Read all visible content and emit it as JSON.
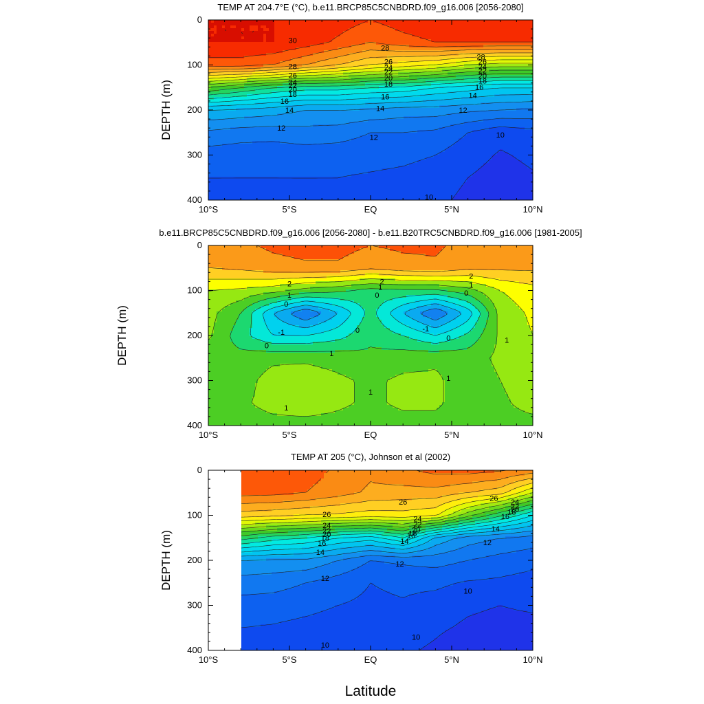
{
  "figure": {
    "xlabel": "Latitude"
  },
  "chart_data": [
    {
      "type": "heatmap",
      "panel": "top",
      "title": "TEMP AT 204.7°E (°C), b.e11.BRCP85C5CNBDRD.f09_g16.006 [2056-2080]",
      "ylabel": "DEPTH (m)",
      "xlim": [
        -10,
        10
      ],
      "ylim": [
        400,
        0
      ],
      "x_ticks": [
        "10°S",
        "5°S",
        "EQ",
        "5°N",
        "10°N"
      ],
      "y_ticks": [
        "0",
        "100",
        "200",
        "300",
        "400"
      ],
      "contour_interval": 1,
      "x": [
        -10,
        -8,
        -6,
        -4,
        -2,
        0,
        2,
        4,
        6,
        8,
        10
      ],
      "y": [
        0,
        50,
        100,
        150,
        200,
        250,
        300,
        350,
        400
      ],
      "z": [
        [
          30.0,
          30.0,
          30.0,
          30.0,
          29.5,
          29.0,
          29.5,
          29.8,
          30.0,
          30.0,
          30.0
        ],
        [
          30.0,
          30.0,
          30.0,
          29.5,
          28.8,
          28.0,
          28.6,
          29.0,
          29.0,
          29.0,
          29.0
        ],
        [
          28.5,
          28.5,
          28.0,
          27.0,
          26.0,
          25.0,
          24.5,
          24.0,
          23.0,
          22.5,
          22.5
        ],
        [
          21.0,
          20.0,
          19.0,
          18.5,
          18.5,
          18.0,
          17.8,
          17.0,
          16.5,
          16.0,
          16.0
        ],
        [
          15.0,
          14.8,
          14.5,
          14.0,
          14.0,
          13.8,
          13.5,
          13.5,
          13.2,
          13.0,
          12.8
        ],
        [
          12.8,
          12.5,
          12.4,
          12.6,
          12.5,
          12.0,
          12.0,
          11.8,
          11.0,
          10.3,
          10.7
        ],
        [
          11.5,
          11.4,
          11.4,
          11.5,
          11.4,
          11.3,
          11.2,
          11.0,
          10.4,
          9.9,
          10.2
        ],
        [
          11.0,
          11.0,
          11.0,
          11.0,
          11.0,
          10.9,
          10.8,
          10.6,
          10.0,
          9.6,
          9.9
        ],
        [
          10.8,
          10.8,
          10.8,
          10.8,
          10.8,
          10.7,
          10.6,
          10.3,
          9.7,
          9.4,
          9.6
        ]
      ],
      "labels": [
        {
          "text": "30",
          "x": -4.8,
          "y": 45
        },
        {
          "text": "28",
          "x": -4.8,
          "y": 103
        },
        {
          "text": "26",
          "x": -4.8,
          "y": 123
        },
        {
          "text": "24",
          "x": -4.8,
          "y": 138
        },
        {
          "text": "22",
          "x": -4.8,
          "y": 145
        },
        {
          "text": "20",
          "x": -4.8,
          "y": 154
        },
        {
          "text": "18",
          "x": -4.8,
          "y": 165
        },
        {
          "text": "16",
          "x": -5.3,
          "y": 180
        },
        {
          "text": "14",
          "x": -5.0,
          "y": 200
        },
        {
          "text": "12",
          "x": -5.5,
          "y": 240
        },
        {
          "text": "28",
          "x": 0.9,
          "y": 62
        },
        {
          "text": "26",
          "x": 1.1,
          "y": 92
        },
        {
          "text": "24",
          "x": 1.1,
          "y": 105
        },
        {
          "text": "22",
          "x": 1.1,
          "y": 115
        },
        {
          "text": "20",
          "x": 1.1,
          "y": 128
        },
        {
          "text": "18",
          "x": 1.1,
          "y": 142
        },
        {
          "text": "16",
          "x": 0.9,
          "y": 170
        },
        {
          "text": "14",
          "x": 0.6,
          "y": 196
        },
        {
          "text": "12",
          "x": 0.2,
          "y": 260
        },
        {
          "text": "28",
          "x": 6.8,
          "y": 82
        },
        {
          "text": "26",
          "x": 6.9,
          "y": 92
        },
        {
          "text": "24",
          "x": 6.9,
          "y": 104
        },
        {
          "text": "22",
          "x": 6.9,
          "y": 112
        },
        {
          "text": "20",
          "x": 6.9,
          "y": 124
        },
        {
          "text": "18",
          "x": 6.9,
          "y": 135
        },
        {
          "text": "16",
          "x": 6.7,
          "y": 149
        },
        {
          "text": "14",
          "x": 6.3,
          "y": 167
        },
        {
          "text": "12",
          "x": 5.7,
          "y": 200
        },
        {
          "text": "10",
          "x": 8.0,
          "y": 255
        },
        {
          "text": "10",
          "x": 3.6,
          "y": 393
        }
      ]
    },
    {
      "type": "heatmap",
      "panel": "middle",
      "title": "b.e11.BRCP85C5CNBDRD.f09_g16.006 [2056-2080] - b.e11.B20TRC5CNBDRD.f09_g16.006 [1981-2005]",
      "ylabel": "DEPTH (m)",
      "xlim": [
        -10,
        10
      ],
      "ylim": [
        400,
        0
      ],
      "x_ticks": [
        "10°S",
        "5°S",
        "EQ",
        "5°N",
        "10°N"
      ],
      "y_ticks": [
        "0",
        "100",
        "200",
        "300",
        "400"
      ],
      "contour_interval": 0.5,
      "x": [
        -10,
        -8,
        -6,
        -4,
        -2,
        0,
        2,
        4,
        6,
        8,
        10
      ],
      "y": [
        0,
        50,
        100,
        150,
        200,
        250,
        300,
        350,
        400
      ],
      "z": [
        [
          2.8,
          2.9,
          3.1,
          3.2,
          3.2,
          3.0,
          3.1,
          3.1,
          2.8,
          2.7,
          2.7
        ],
        [
          2.5,
          2.6,
          2.8,
          2.9,
          2.9,
          2.6,
          2.8,
          2.9,
          2.6,
          2.6,
          2.6
        ],
        [
          1.5,
          1.4,
          1.2,
          0.8,
          0.6,
          0.3,
          0.4,
          0.4,
          0.8,
          1.5,
          1.8
        ],
        [
          1.2,
          0.5,
          -1.0,
          -2.0,
          -1.0,
          0.2,
          -1.0,
          -2.0,
          -0.8,
          1.2,
          1.6
        ],
        [
          1.1,
          0.2,
          -0.5,
          -0.5,
          -0.2,
          0.4,
          0.0,
          -0.5,
          0.1,
          1.1,
          1.5
        ],
        [
          0.6,
          0.7,
          0.9,
          0.9,
          0.8,
          0.6,
          0.8,
          0.9,
          0.8,
          1.1,
          1.3
        ],
        [
          0.6,
          0.8,
          1.2,
          1.3,
          1.1,
          0.9,
          1.1,
          1.1,
          0.7,
          1.0,
          1.3
        ],
        [
          0.7,
          0.9,
          1.2,
          1.3,
          1.1,
          0.9,
          1.1,
          1.1,
          0.7,
          0.9,
          1.2
        ],
        [
          0.7,
          0.7,
          0.8,
          0.8,
          0.8,
          0.7,
          0.8,
          0.8,
          0.7,
          0.8,
          0.8
        ]
      ],
      "labels": [
        {
          "text": "2",
          "x": -5.0,
          "y": 85
        },
        {
          "text": "1",
          "x": -5.0,
          "y": 110
        },
        {
          "text": "0",
          "x": -5.2,
          "y": 130
        },
        {
          "text": "-1",
          "x": -5.5,
          "y": 192
        },
        {
          "text": "0",
          "x": -6.4,
          "y": 222
        },
        {
          "text": "0",
          "x": -0.8,
          "y": 188
        },
        {
          "text": "1",
          "x": -2.4,
          "y": 240
        },
        {
          "text": "1",
          "x": -5.2,
          "y": 360
        },
        {
          "text": "1",
          "x": 0.0,
          "y": 325
        },
        {
          "text": "2",
          "x": 0.7,
          "y": 80
        },
        {
          "text": "1",
          "x": 0.6,
          "y": 92
        },
        {
          "text": "0",
          "x": 0.4,
          "y": 110
        },
        {
          "text": "-1",
          "x": 3.4,
          "y": 185
        },
        {
          "text": "0",
          "x": 4.8,
          "y": 205
        },
        {
          "text": "0",
          "x": 5.9,
          "y": 105
        },
        {
          "text": "1",
          "x": 6.2,
          "y": 88
        },
        {
          "text": "2",
          "x": 6.2,
          "y": 68
        },
        {
          "text": "1",
          "x": 8.4,
          "y": 210
        },
        {
          "text": "1",
          "x": 4.8,
          "y": 295
        }
      ]
    },
    {
      "type": "heatmap",
      "panel": "bottom",
      "title": "TEMP AT 205 (°C), Johnson et al (2002)",
      "ylabel": "DEPTH (m)",
      "xlim": [
        -10,
        10
      ],
      "ylim": [
        400,
        0
      ],
      "x_ticks": [
        "10°S",
        "5°S",
        "EQ",
        "5°N",
        "10°N"
      ],
      "y_ticks": [
        "0",
        "100",
        "200",
        "300",
        "400"
      ],
      "contour_interval": 1,
      "data_xlim": [
        -8,
        10
      ],
      "x": [
        -8,
        -6,
        -4,
        -2,
        0,
        2,
        4,
        6,
        8,
        10
      ],
      "y": [
        0,
        50,
        100,
        150,
        200,
        250,
        300,
        350,
        400
      ],
      "z": [
        [
          29.0,
          28.8,
          28.5,
          27.8,
          27.2,
          27.8,
          28.3,
          28.4,
          28.1,
          27.6
        ],
        [
          28.4,
          28.3,
          28.0,
          27.4,
          26.8,
          26.6,
          26.6,
          26.0,
          25.4,
          23.0
        ],
        [
          25.5,
          25.3,
          25.0,
          24.8,
          24.5,
          24.6,
          24.2,
          21.4,
          19.2,
          17.0
        ],
        [
          19.5,
          18.5,
          18.0,
          17.0,
          16.5,
          18.0,
          14.8,
          13.5,
          13.0,
          12.6
        ],
        [
          14.0,
          13.8,
          13.8,
          13.0,
          12.0,
          12.2,
          12.4,
          12.0,
          11.6,
          11.3
        ],
        [
          12.5,
          12.4,
          12.0,
          11.5,
          11.0,
          11.2,
          11.2,
          10.9,
          10.8,
          10.6
        ],
        [
          11.6,
          11.5,
          11.3,
          11.0,
          10.8,
          10.9,
          10.6,
          10.2,
          10.0,
          10.2
        ],
        [
          11.0,
          10.9,
          10.7,
          10.5,
          10.5,
          10.6,
          10.2,
          9.8,
          9.6,
          9.6
        ],
        [
          10.3,
          10.3,
          10.2,
          10.1,
          10.1,
          10.2,
          9.8,
          9.1,
          9.1,
          9.3
        ]
      ],
      "labels": [
        {
          "text": "26",
          "x": -2.7,
          "y": 98
        },
        {
          "text": "24",
          "x": -2.7,
          "y": 122
        },
        {
          "text": "22",
          "x": -2.7,
          "y": 134
        },
        {
          "text": "20",
          "x": -2.7,
          "y": 142
        },
        {
          "text": "18",
          "x": -2.8,
          "y": 150
        },
        {
          "text": "16",
          "x": -3.0,
          "y": 162
        },
        {
          "text": "14",
          "x": -3.1,
          "y": 182
        },
        {
          "text": "12",
          "x": -2.8,
          "y": 240
        },
        {
          "text": "26",
          "x": 2.0,
          "y": 70
        },
        {
          "text": "24",
          "x": 2.9,
          "y": 108
        },
        {
          "text": "22",
          "x": 2.9,
          "y": 120
        },
        {
          "text": "20",
          "x": 2.8,
          "y": 132
        },
        {
          "text": "18",
          "x": 2.6,
          "y": 140
        },
        {
          "text": "16",
          "x": 2.5,
          "y": 145
        },
        {
          "text": "14",
          "x": 2.1,
          "y": 157
        },
        {
          "text": "12",
          "x": 1.8,
          "y": 208
        },
        {
          "text": "26",
          "x": 7.6,
          "y": 62
        },
        {
          "text": "24",
          "x": 8.9,
          "y": 70
        },
        {
          "text": "22",
          "x": 8.9,
          "y": 80
        },
        {
          "text": "20",
          "x": 8.9,
          "y": 86
        },
        {
          "text": "18",
          "x": 8.7,
          "y": 92
        },
        {
          "text": "16",
          "x": 8.3,
          "y": 102
        },
        {
          "text": "14",
          "x": 7.7,
          "y": 130
        },
        {
          "text": "12",
          "x": 7.2,
          "y": 160
        },
        {
          "text": "10",
          "x": 6.0,
          "y": 268
        },
        {
          "text": "10",
          "x": 2.8,
          "y": 370
        },
        {
          "text": "10",
          "x": -2.8,
          "y": 388
        }
      ]
    }
  ]
}
